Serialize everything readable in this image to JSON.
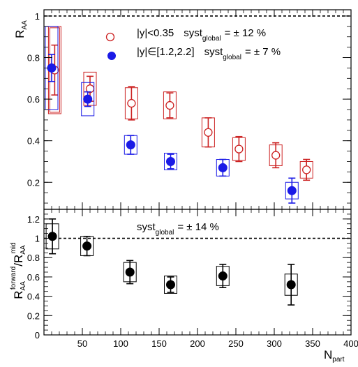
{
  "chart_data": [
    {
      "type": "scatter",
      "panel": "top",
      "ylabel": {
        "main": "R",
        "sub": "AA"
      },
      "xlim": [
        0,
        400
      ],
      "ylim": [
        0.07,
        1.03
      ],
      "x_ticks": [
        50,
        100,
        150,
        200,
        250,
        300,
        350,
        400
      ],
      "y_ticks": [
        0.2,
        0.4,
        0.6,
        0.8,
        1
      ],
      "y_tick_labels": [
        "0.2",
        "0.4",
        "0.6",
        "0.8",
        "1"
      ],
      "reference_line": 1.0,
      "series": [
        {
          "label_parts": [
            "|y|<0.35",
            "syst",
            "global",
            "= ± 12 %"
          ],
          "color": "#cc2222",
          "marker": "open-circle",
          "x": [
            14,
            60,
            114,
            164,
            214,
            254,
            302,
            342
          ],
          "y": [
            0.74,
            0.65,
            0.58,
            0.57,
            0.44,
            0.36,
            0.33,
            0.26
          ],
          "stat_err": [
            0.12,
            0.06,
            0.08,
            0.06,
            0.07,
            0.06,
            0.06,
            0.05
          ],
          "syst_err": [
            0.21,
            0.08,
            0.075,
            0.065,
            0.07,
            0.055,
            0.05,
            0.04
          ],
          "syst_halfwidth": 9
        },
        {
          "label_parts": [
            "|y|∈[1.2,2.2]",
            "syst",
            "global",
            "= ± 7 %"
          ],
          "color": "#1a1ae6",
          "marker": "filled-circle",
          "x": [
            10,
            57,
            113,
            165,
            233,
            323
          ],
          "y": [
            0.75,
            0.6,
            0.38,
            0.3,
            0.27,
            0.16
          ],
          "stat_err": [
            0.065,
            0.035,
            0.045,
            0.035,
            0.04,
            0.06
          ],
          "syst_err": [
            0.2,
            0.08,
            0.045,
            0.04,
            0.04,
            0.04
          ],
          "syst_halfwidth": 9
        }
      ]
    },
    {
      "type": "scatter",
      "panel": "bottom",
      "xlabel": {
        "main": "N",
        "sub": "part"
      },
      "ylabel": {
        "main": "R",
        "sub1": "AA",
        "sup1": "forward",
        "slash": "/R",
        "sub2": "AA",
        "sup2": "mid"
      },
      "xlim": [
        0,
        400
      ],
      "ylim": [
        0,
        1.3
      ],
      "x_ticks": [
        50,
        100,
        150,
        200,
        250,
        300,
        350,
        400
      ],
      "x_tick_labels": [
        "50",
        "100",
        "150",
        "200",
        "250",
        "300",
        "350",
        "400"
      ],
      "y_ticks": [
        0,
        0.2,
        0.4,
        0.6,
        0.8,
        1,
        1.2
      ],
      "y_tick_labels": [
        "0",
        "0.2",
        "0.4",
        "0.6",
        "0.8",
        "1",
        "1.2"
      ],
      "reference_line": 1.0,
      "annotation_parts": [
        "syst",
        "global",
        "= ± 14 %"
      ],
      "series": [
        {
          "color": "#000000",
          "marker": "filled-circle",
          "x": [
            11,
            56,
            112,
            165,
            233,
            322
          ],
          "y": [
            1.02,
            0.92,
            0.65,
            0.52,
            0.61,
            0.52
          ],
          "stat_err": [
            0.18,
            0.1,
            0.12,
            0.08,
            0.12,
            0.21
          ],
          "syst_err": [
            0.13,
            0.1,
            0.1,
            0.09,
            0.1,
            0.11
          ],
          "syst_halfwidth": 9
        }
      ]
    }
  ]
}
